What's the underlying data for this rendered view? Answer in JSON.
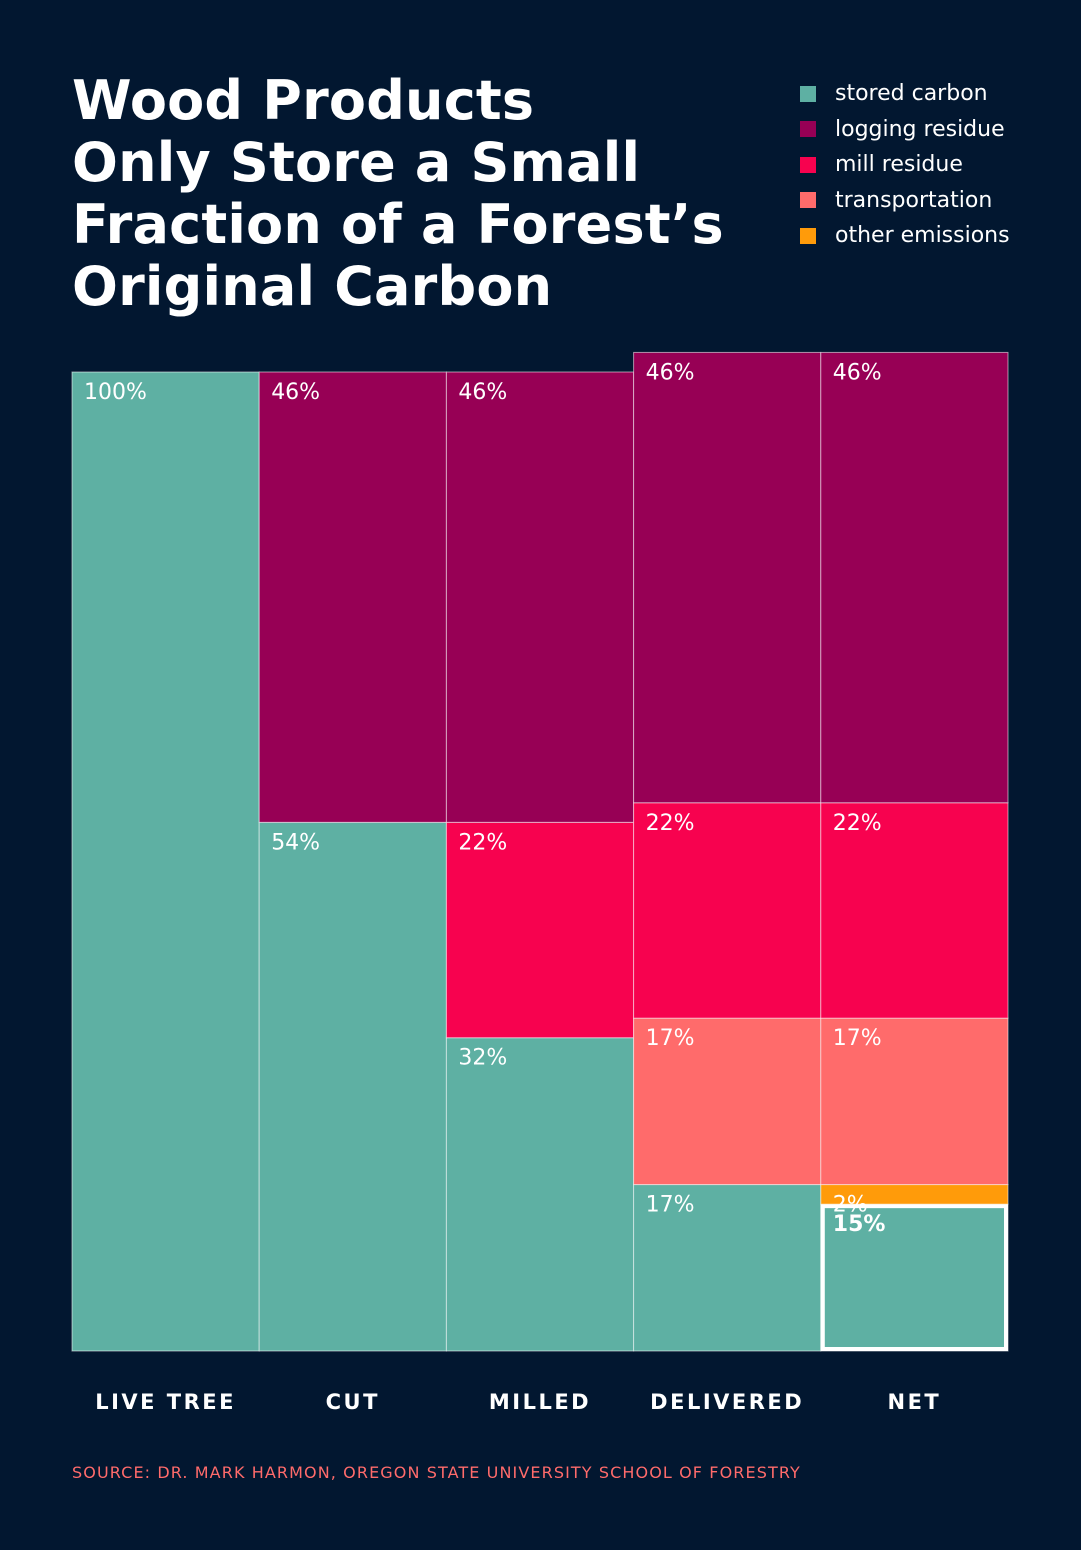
{
  "title_lines": [
    "Wood Products",
    "Only Store a Small",
    "Fraction of a Forest’s",
    "Original Carbon"
  ],
  "legend": [
    {
      "label": "stored carbon",
      "color": "#5EB0A3"
    },
    {
      "label": "logging residue",
      "color": "#970055"
    },
    {
      "label": "mill residue",
      "color": "#F7024F"
    },
    {
      "label": "transportation",
      "color": "#FF6B6B"
    },
    {
      "label": "other emissions",
      "color": "#FF9B0A"
    }
  ],
  "chart_data": {
    "type": "bar",
    "stacked": true,
    "ylim": [
      0,
      100
    ],
    "categories": [
      "LIVE TREE",
      "CUT",
      "MILLED",
      "DELIVERED",
      "NET"
    ],
    "series": [
      {
        "name": "stored carbon",
        "color": "#5EB0A3",
        "values": [
          100,
          54,
          32,
          17,
          15
        ]
      },
      {
        "name": "other emissions",
        "color": "#FF9B0A",
        "values": [
          0,
          0,
          0,
          0,
          2
        ]
      },
      {
        "name": "transportation",
        "color": "#FF6B6B",
        "values": [
          0,
          0,
          0,
          17,
          17
        ]
      },
      {
        "name": "mill residue",
        "color": "#F7024F",
        "values": [
          0,
          0,
          22,
          22,
          22
        ]
      },
      {
        "name": "logging residue",
        "color": "#970055",
        "values": [
          0,
          46,
          46,
          46,
          46
        ]
      }
    ],
    "data_labels": [
      [
        "100%",
        "",
        "",
        "",
        ""
      ],
      [
        "54%",
        "",
        "",
        "",
        "46%"
      ],
      [
        "32%",
        "",
        "",
        "22%",
        "46%"
      ],
      [
        "17%",
        "",
        "17%",
        "22%",
        "46%"
      ],
      [
        "15%",
        "2%",
        "17%",
        "22%",
        "46%"
      ]
    ],
    "highlight": {
      "category": "NET",
      "series": "stored carbon"
    }
  },
  "source": "SOURCE:  DR. MARK HARMON, OREGON STATE UNIVERSITY SCHOOL OF FORESTRY"
}
